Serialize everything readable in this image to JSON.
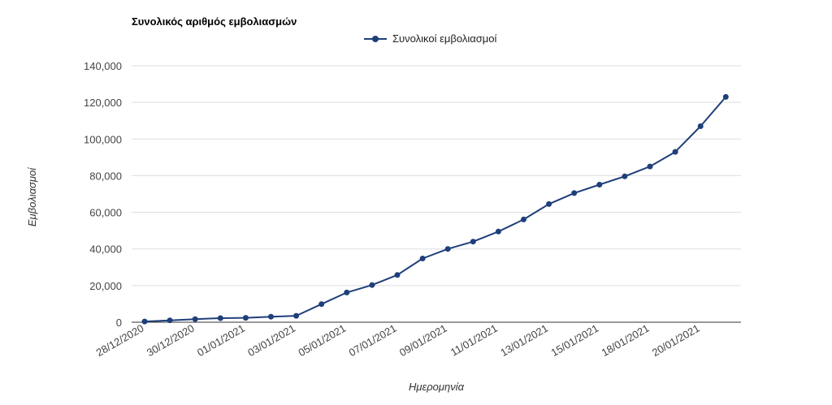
{
  "chart_data": {
    "type": "line",
    "title": "Συνολικός αριθμός εμβολιασμών",
    "xlabel": "Ημερομηνία",
    "ylabel": "Εμβολιασμοί",
    "ylim": [
      0,
      140000
    ],
    "yticks": [
      0,
      20000,
      40000,
      60000,
      80000,
      100000,
      120000,
      140000
    ],
    "ytick_labels": [
      "0",
      "20,000",
      "40,000",
      "60,000",
      "80,000",
      "100,000",
      "120,000",
      "140,000"
    ],
    "xtick_labels": [
      "28/12/2020",
      "30/12/2020",
      "01/01/2021",
      "03/01/2021",
      "05/01/2021",
      "07/01/2021",
      "09/01/2021",
      "11/01/2021",
      "13/01/2021",
      "15/01/2021",
      "18/01/2021",
      "20/01/2021"
    ],
    "grid": true,
    "legend_position": "top-center",
    "series": [
      {
        "name": "Συνολικοί εμβολιασμοί",
        "color": "#1f3f7a",
        "values": [
          400,
          1000,
          1700,
          2200,
          2400,
          3000,
          3500,
          9900,
          16200,
          20300,
          25800,
          34800,
          40000,
          44000,
          49500,
          56100,
          64500,
          70500,
          75100,
          79600,
          85000,
          93000,
          107000,
          123000
        ]
      }
    ]
  }
}
